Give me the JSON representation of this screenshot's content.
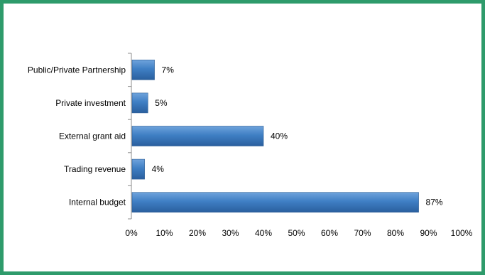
{
  "chart_data": {
    "type": "bar",
    "orientation": "horizontal",
    "categories": [
      "Public/Private Partnership",
      "Private investment",
      "External grant aid",
      "Trading revenue",
      "Internal budget"
    ],
    "values": [
      7,
      5,
      40,
      4,
      87
    ],
    "value_labels": [
      "7%",
      "5%",
      "40%",
      "4%",
      "87%"
    ],
    "title": "",
    "xlabel": "",
    "ylabel": "",
    "xlim": [
      0,
      100
    ],
    "x_ticks": [
      0,
      10,
      20,
      30,
      40,
      50,
      60,
      70,
      80,
      90,
      100
    ],
    "x_tick_labels": [
      "0%",
      "10%",
      "20%",
      "30%",
      "40%",
      "50%",
      "60%",
      "70%",
      "80%",
      "90%",
      "100%"
    ],
    "grid": false,
    "legend": "none",
    "bar_color": "#3f7fc4",
    "frame_color": "#2e9b6b"
  }
}
